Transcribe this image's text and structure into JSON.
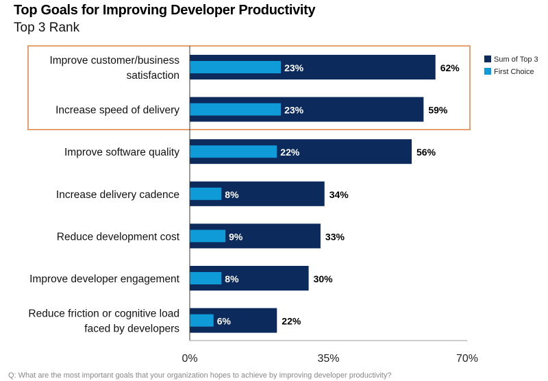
{
  "chart_data": {
    "type": "bar",
    "orientation": "horizontal",
    "title": "Top Goals for Improving Developer Productivity",
    "subtitle": "Top 3 Rank",
    "categories": [
      [
        "Improve customer/business",
        "satisfaction"
      ],
      [
        "Increase speed of delivery"
      ],
      [
        "Improve software quality"
      ],
      [
        "Increase delivery cadence"
      ],
      [
        "Reduce development cost"
      ],
      [
        "Improve developer engagement"
      ],
      [
        "Reduce friction or cognitive load",
        "faced by developers"
      ]
    ],
    "series": [
      {
        "name": "Sum of Top 3",
        "values": [
          62,
          59,
          56,
          34,
          33,
          30,
          22
        ],
        "color": "#0c2a5b"
      },
      {
        "name": "First Choice",
        "values": [
          23,
          23,
          22,
          8,
          9,
          8,
          6
        ],
        "color": "#0f9bd7"
      }
    ],
    "xlim": [
      0,
      70
    ],
    "xticks": [
      "0%",
      "35%",
      "70%"
    ],
    "tick_values": [
      0,
      35,
      70
    ],
    "legend": "top-right",
    "grid": false,
    "highlight_box_color": "#e0803f",
    "highlighted_categories": [
      0,
      1
    ],
    "footnote": "Q: What are the most important goals that your organization hopes to achieve by improving developer productivity?"
  }
}
